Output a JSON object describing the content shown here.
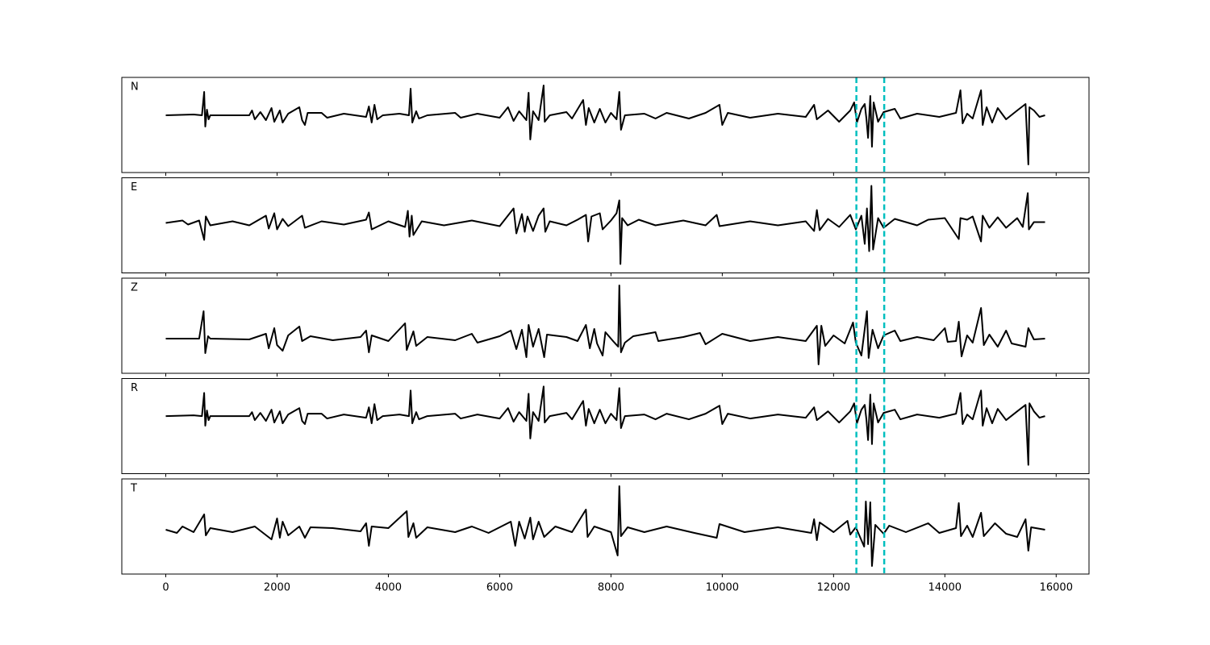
{
  "chart_data": [
    {
      "type": "line",
      "label": "N",
      "color": "#000000",
      "xlim": [
        -790,
        16590
      ],
      "ylim": [
        -7.1,
        4.7
      ],
      "xticks": [
        0,
        2000,
        4000,
        6000,
        8000,
        10000,
        12000,
        14000,
        16000
      ],
      "xtick_labels": false,
      "vlines": [
        12410,
        12910
      ],
      "vline_color": "#00bfbf",
      "x": [
        0,
        500,
        650,
        690,
        710,
        740,
        770,
        800,
        1500,
        1550,
        1600,
        1700,
        1800,
        1900,
        1950,
        2050,
        2100,
        2200,
        2400,
        2450,
        2500,
        2550,
        2800,
        2900,
        3200,
        3600,
        3650,
        3700,
        3750,
        3800,
        3900,
        4200,
        4370,
        4400,
        4430,
        4500,
        4550,
        4700,
        5200,
        5300,
        5600,
        6000,
        6150,
        6250,
        6350,
        6480,
        6520,
        6550,
        6600,
        6700,
        6790,
        6810,
        6900,
        7200,
        7300,
        7500,
        7550,
        7600,
        7700,
        7800,
        7900,
        8000,
        8100,
        8150,
        8180,
        8250,
        8600,
        8800,
        9000,
        9400,
        9700,
        9950,
        10000,
        10100,
        10500,
        11000,
        11500,
        11650,
        11700,
        11900,
        12100,
        12300,
        12370,
        12420,
        12500,
        12560,
        12590,
        12620,
        12660,
        12690,
        12720,
        12800,
        12900,
        13100,
        13200,
        13500,
        13900,
        14200,
        14280,
        14320,
        14400,
        14500,
        14650,
        14680,
        14750,
        14850,
        14950,
        15100,
        15300,
        15450,
        15500,
        15520,
        15600,
        15700,
        15800
      ],
      "values": [
        0,
        0.1,
        0,
        2.9,
        -1.4,
        0.7,
        -0.5,
        0,
        0,
        0.6,
        -0.5,
        0.4,
        -0.6,
        0.9,
        -0.8,
        0.6,
        -0.9,
        0.2,
        1.0,
        -0.6,
        -1.2,
        0.3,
        0.3,
        -0.3,
        0.2,
        -0.2,
        1.1,
        -0.9,
        1.3,
        -0.5,
        0,
        0.2,
        0,
        3.3,
        -0.9,
        0.5,
        -0.4,
        0,
        0.3,
        -0.3,
        0.2,
        -0.3,
        1.0,
        -0.7,
        0.5,
        -0.6,
        2.8,
        -3.0,
        0.5,
        -0.6,
        3.7,
        -0.8,
        0,
        0.4,
        -0.4,
        1.9,
        -1.2,
        0.9,
        -0.9,
        0.8,
        -0.9,
        0.3,
        -0.5,
        2.9,
        -1.8,
        0,
        0.2,
        -0.4,
        0.3,
        -0.4,
        0.3,
        1.3,
        -1.2,
        0.3,
        -0.3,
        0.2,
        -0.2,
        1.3,
        -0.5,
        0.6,
        -0.8,
        0.6,
        1.6,
        -0.9,
        0.8,
        1.4,
        -0.4,
        -2.8,
        2.4,
        -3.9,
        1.6,
        -0.8,
        0.4,
        0.8,
        -0.4,
        0.2,
        -0.2,
        0.3,
        3.1,
        -1.0,
        0.2,
        -0.4,
        3.1,
        -1.2,
        1.0,
        -0.9,
        0.9,
        -0.5,
        0.6,
        1.4,
        -6.1,
        1.0,
        0.6,
        -0.2,
        0
      ]
    },
    {
      "type": "line",
      "label": "E",
      "color": "#000000",
      "xlim": [
        -790,
        16590
      ],
      "ylim": [
        -6.2,
        5.6
      ],
      "xticks": [
        0,
        2000,
        4000,
        6000,
        8000,
        10000,
        12000,
        14000,
        16000
      ],
      "xtick_labels": false,
      "vlines": [
        12410,
        12910
      ],
      "vline_color": "#00bfbf",
      "x": [
        0,
        300,
        400,
        600,
        690,
        720,
        800,
        1200,
        1500,
        1800,
        1850,
        1950,
        2000,
        2100,
        2200,
        2450,
        2500,
        2800,
        3200,
        3600,
        3650,
        3700,
        4000,
        4300,
        4350,
        4380,
        4420,
        4450,
        4600,
        5000,
        5500,
        6000,
        6250,
        6300,
        6400,
        6450,
        6500,
        6600,
        6700,
        6790,
        6820,
        6900,
        7200,
        7400,
        7550,
        7590,
        7650,
        7800,
        7850,
        8000,
        8100,
        8150,
        8170,
        8200,
        8300,
        8500,
        8800,
        9300,
        9700,
        9900,
        9950,
        10500,
        11000,
        11500,
        11650,
        11700,
        11750,
        11900,
        12100,
        12300,
        12400,
        12500,
        12560,
        12600,
        12640,
        12680,
        12710,
        12800,
        12900,
        13100,
        13500,
        13700,
        14000,
        14250,
        14280,
        14400,
        14500,
        14650,
        14680,
        14800,
        14950,
        15100,
        15300,
        15400,
        15490,
        15510,
        15600,
        15800
      ],
      "values": [
        0,
        0.3,
        -0.2,
        0.3,
        -2.1,
        0.8,
        -0.3,
        0.2,
        -0.3,
        0.9,
        -0.7,
        1.2,
        -0.8,
        0.5,
        -0.4,
        0.9,
        -0.6,
        0.2,
        -0.2,
        0.4,
        1.3,
        -0.8,
        0.2,
        -0.5,
        1.5,
        -1.7,
        0.9,
        -1.5,
        0.2,
        -0.3,
        0.3,
        -0.4,
        1.8,
        -1.3,
        1.1,
        -1.1,
        0.8,
        -1.0,
        0.9,
        1.8,
        -1.1,
        0.2,
        -0.3,
        0.4,
        1.0,
        -2.3,
        0.8,
        1.2,
        -0.8,
        0.3,
        1.2,
        2.8,
        -5.1,
        0.6,
        -0.3,
        0.4,
        -0.3,
        0.3,
        -0.3,
        1.0,
        -0.4,
        0.2,
        -0.3,
        0.2,
        -1.0,
        1.6,
        -0.9,
        0.5,
        -0.5,
        1.0,
        -0.8,
        0.9,
        -2.6,
        1.8,
        -3.5,
        4.6,
        -3.3,
        0.6,
        -0.6,
        0.5,
        -0.3,
        0.4,
        0.6,
        -2.0,
        0.6,
        0.4,
        0.8,
        -2.3,
        0.9,
        -0.6,
        0.7,
        -0.6,
        0.6,
        -0.5,
        3.7,
        -0.8,
        0.1,
        0.1
      ]
    },
    {
      "type": "line",
      "label": "Z",
      "color": "#000000",
      "xlim": [
        -790,
        16590
      ],
      "ylim": [
        -4.3,
        7.5
      ],
      "xticks": [
        0,
        2000,
        4000,
        6000,
        8000,
        10000,
        12000,
        14000,
        16000
      ],
      "xtick_labels": false,
      "vlines": [
        12410,
        12910
      ],
      "vline_color": "#00bfbf",
      "x": [
        0,
        600,
        680,
        710,
        760,
        800,
        1500,
        1800,
        1850,
        1950,
        2000,
        2100,
        2200,
        2400,
        2450,
        2600,
        3000,
        3500,
        3600,
        3650,
        3700,
        4000,
        4300,
        4330,
        4450,
        4500,
        4700,
        5200,
        5500,
        5600,
        6000,
        6200,
        6300,
        6400,
        6480,
        6520,
        6600,
        6700,
        6800,
        6850,
        7200,
        7400,
        7550,
        7620,
        7700,
        7750,
        7850,
        7900,
        8050,
        8130,
        8150,
        8180,
        8250,
        8400,
        8800,
        8850,
        9300,
        9600,
        9700,
        10000,
        10500,
        11000,
        11500,
        11700,
        11730,
        11780,
        11850,
        12000,
        12200,
        12350,
        12400,
        12500,
        12560,
        12600,
        12630,
        12700,
        12800,
        12900,
        13100,
        13200,
        13500,
        13800,
        14000,
        14050,
        14200,
        14250,
        14300,
        14400,
        14500,
        14650,
        14700,
        14800,
        14950,
        15100,
        15200,
        15450,
        15500,
        15600,
        15800
      ],
      "values": [
        0,
        0,
        3.4,
        -1.8,
        0.3,
        0,
        -0.1,
        0.6,
        -1.2,
        1.3,
        -0.8,
        -1.5,
        0.4,
        1.5,
        -0.3,
        0.3,
        -0.2,
        0.2,
        1.0,
        -1.7,
        0.4,
        -0.3,
        1.9,
        -1.4,
        0.9,
        -0.9,
        0.2,
        -0.2,
        0.6,
        -0.5,
        0.3,
        1.0,
        -1.3,
        1.1,
        -2.3,
        1.7,
        -1.0,
        1.2,
        -2.3,
        0.5,
        0.2,
        -0.3,
        1.7,
        -1.2,
        1.2,
        -0.6,
        -2.1,
        0.8,
        -0.4,
        -1.0,
        6.6,
        -1.7,
        -0.5,
        0.3,
        0.8,
        -0.3,
        0.2,
        0.7,
        -0.7,
        0.6,
        -0.3,
        0.2,
        -0.3,
        1.6,
        -3.2,
        1.6,
        -0.9,
        0.4,
        -0.6,
        2.0,
        -0.5,
        -2.1,
        1.2,
        3.4,
        -2.4,
        1.1,
        -1.2,
        0.4,
        1.0,
        -0.3,
        0.2,
        -0.2,
        1.3,
        -0.4,
        -0.3,
        2.1,
        -2.2,
        0.4,
        -0.5,
        3.8,
        -0.8,
        0.5,
        -1.0,
        1.0,
        -0.6,
        -1.0,
        1.3,
        -0.1,
        0
      ]
    },
    {
      "type": "line",
      "label": "R",
      "color": "#000000",
      "xlim": [
        -790,
        16590
      ],
      "ylim": [
        -7.2,
        4.7
      ],
      "xticks": [
        0,
        2000,
        4000,
        6000,
        8000,
        10000,
        12000,
        14000,
        16000
      ],
      "xtick_labels": false,
      "vlines": [
        12410,
        12910
      ],
      "vline_color": "#00bfbf",
      "x": [
        0,
        500,
        650,
        690,
        710,
        740,
        770,
        800,
        1500,
        1550,
        1600,
        1700,
        1800,
        1900,
        1950,
        2050,
        2100,
        2200,
        2400,
        2450,
        2500,
        2550,
        2800,
        2900,
        3200,
        3600,
        3650,
        3700,
        3750,
        3800,
        3900,
        4200,
        4370,
        4400,
        4430,
        4500,
        4550,
        4700,
        5200,
        5300,
        5600,
        6000,
        6150,
        6250,
        6350,
        6480,
        6520,
        6550,
        6600,
        6700,
        6790,
        6810,
        6900,
        7200,
        7300,
        7500,
        7550,
        7600,
        7700,
        7800,
        7900,
        8000,
        8100,
        8150,
        8180,
        8250,
        8600,
        8800,
        9000,
        9400,
        9700,
        9950,
        10000,
        10100,
        10500,
        11000,
        11500,
        11650,
        11700,
        11900,
        12100,
        12300,
        12370,
        12420,
        12500,
        12560,
        12590,
        12620,
        12660,
        12690,
        12720,
        12800,
        12900,
        13100,
        13200,
        13500,
        13900,
        14200,
        14280,
        14320,
        14400,
        14500,
        14650,
        14680,
        14750,
        14850,
        14950,
        15100,
        15300,
        15450,
        15500,
        15520,
        15600,
        15700,
        15800
      ],
      "values": [
        0,
        0.1,
        0,
        2.9,
        -1.2,
        0.7,
        -0.5,
        0,
        0,
        0.5,
        -0.5,
        0.4,
        -0.6,
        0.8,
        -0.8,
        0.6,
        -0.9,
        0.2,
        1.0,
        -0.6,
        -1.0,
        0.3,
        0.3,
        -0.3,
        0.2,
        -0.2,
        1.1,
        -0.9,
        1.5,
        -0.5,
        0,
        0.2,
        0,
        3.2,
        -0.9,
        0.5,
        -0.4,
        0,
        0.3,
        -0.3,
        0.2,
        -0.3,
        1.0,
        -0.7,
        0.5,
        -0.6,
        2.8,
        -2.8,
        0.5,
        -0.6,
        3.7,
        -0.8,
        0,
        0.4,
        -0.4,
        1.9,
        -1.2,
        0.9,
        -0.9,
        0.8,
        -0.9,
        0.3,
        -0.5,
        3.5,
        -1.5,
        0,
        0.2,
        -0.4,
        0.3,
        -0.4,
        0.3,
        1.3,
        -1.0,
        0.3,
        -0.3,
        0.2,
        -0.2,
        1.1,
        -0.5,
        0.6,
        -0.8,
        0.6,
        1.6,
        -0.9,
        0.8,
        1.4,
        -0.4,
        -3.0,
        2.7,
        -3.5,
        1.6,
        -0.8,
        0.4,
        0.8,
        -0.4,
        0.2,
        -0.2,
        0.3,
        2.9,
        -1.0,
        0.2,
        -0.4,
        3.2,
        -1.2,
        1.0,
        -0.9,
        0.9,
        -0.5,
        0.6,
        1.4,
        -6.1,
        1.6,
        0.6,
        -0.2,
        0
      ]
    },
    {
      "type": "line",
      "label": "T",
      "color": "#000000",
      "xlim": [
        -790,
        16590
      ],
      "ylim": [
        -5.5,
        6.3
      ],
      "xticks": [
        0,
        2000,
        4000,
        6000,
        8000,
        10000,
        12000,
        14000,
        16000
      ],
      "xtick_labels": true,
      "vlines": [
        12410,
        12910
      ],
      "vline_color": "#00bfbf",
      "x": [
        0,
        200,
        300,
        500,
        690,
        720,
        800,
        1200,
        1600,
        1900,
        2000,
        2050,
        2100,
        2200,
        2400,
        2500,
        2600,
        3000,
        3500,
        3600,
        3650,
        3700,
        4000,
        4330,
        4360,
        4450,
        4500,
        4700,
        5200,
        5500,
        5800,
        6200,
        6280,
        6350,
        6450,
        6550,
        6600,
        6700,
        6800,
        7000,
        7300,
        7550,
        7580,
        7700,
        8000,
        8120,
        8150,
        8180,
        8300,
        8600,
        9000,
        9500,
        9900,
        9950,
        10400,
        11000,
        11600,
        11650,
        11700,
        11750,
        12000,
        12250,
        12300,
        12400,
        12550,
        12580,
        12620,
        12660,
        12690,
        12750,
        12900,
        13000,
        13300,
        13700,
        13900,
        14200,
        14250,
        14290,
        14400,
        14500,
        14650,
        14700,
        14900,
        15100,
        15300,
        15450,
        15500,
        15550,
        15800
      ],
      "values": [
        0,
        -0.4,
        0.4,
        -0.3,
        1.9,
        -0.7,
        0.2,
        -0.3,
        0.4,
        -1.2,
        1.4,
        -1.0,
        1.0,
        -0.7,
        0.4,
        -1.0,
        0.3,
        0.2,
        -0.2,
        0.8,
        -2.0,
        0.4,
        0.2,
        2.3,
        -0.9,
        0.8,
        -1.0,
        0.3,
        -0.3,
        0.4,
        -0.4,
        1.0,
        -2.0,
        1.0,
        -1.1,
        1.5,
        -1.2,
        1.0,
        -0.9,
        0.4,
        -0.3,
        2.5,
        -0.9,
        0.4,
        -0.3,
        -3.2,
        5.4,
        -0.8,
        0.3,
        -0.3,
        0.4,
        -0.4,
        -1.0,
        0.7,
        -0.3,
        0.3,
        -0.4,
        1.3,
        -1.3,
        0.9,
        -0.3,
        1.1,
        -0.6,
        0.3,
        -2.1,
        3.5,
        -1.8,
        3.4,
        -4.5,
        0.6,
        -0.5,
        0.5,
        -0.3,
        0.8,
        -0.4,
        0.2,
        3.3,
        -0.8,
        0.5,
        -0.9,
        2.1,
        -0.8,
        0.8,
        -0.5,
        -0.9,
        1.3,
        -2.6,
        0.3,
        0
      ]
    }
  ]
}
